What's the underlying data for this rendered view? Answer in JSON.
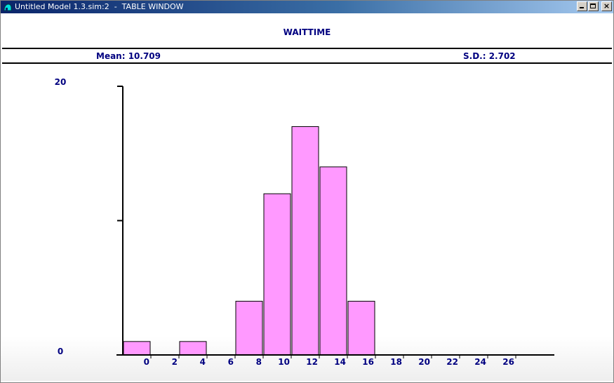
{
  "window": {
    "title": "Untitled Model 1.3.sim:2  -  TABLE WINDOW",
    "icon": "app-icon",
    "buttons": {
      "minimize": "minimize-icon",
      "maximize": "maximize-icon",
      "close": "×"
    }
  },
  "colors": {
    "bar_fill": "#ff99ff",
    "bar_stroke": "#000000",
    "text": "#000080"
  },
  "stats": {
    "mean": "Mean: 10.709",
    "sd": "S.D.: 2.702"
  },
  "chart_data": {
    "type": "bar",
    "title": "WAITTIME",
    "xlabel": "",
    "ylabel": "",
    "y_tick_labels": [
      "0",
      "20"
    ],
    "ylim": [
      0,
      20
    ],
    "x_tick_labels": [
      "0",
      "2",
      "4",
      "6",
      "8",
      "10",
      "12",
      "14",
      "16",
      "18",
      "20",
      "22",
      "24",
      "26"
    ],
    "xlim": [
      -2,
      27
    ],
    "grid": false,
    "legend": "none",
    "bins": [
      {
        "from": -2,
        "to": 0,
        "value": 1
      },
      {
        "from": 2,
        "to": 4,
        "value": 1
      },
      {
        "from": 6,
        "to": 8,
        "value": 4
      },
      {
        "from": 8,
        "to": 10,
        "value": 12
      },
      {
        "from": 10,
        "to": 12,
        "value": 17
      },
      {
        "from": 12,
        "to": 14,
        "value": 14
      },
      {
        "from": 14,
        "to": 16,
        "value": 4
      }
    ]
  }
}
